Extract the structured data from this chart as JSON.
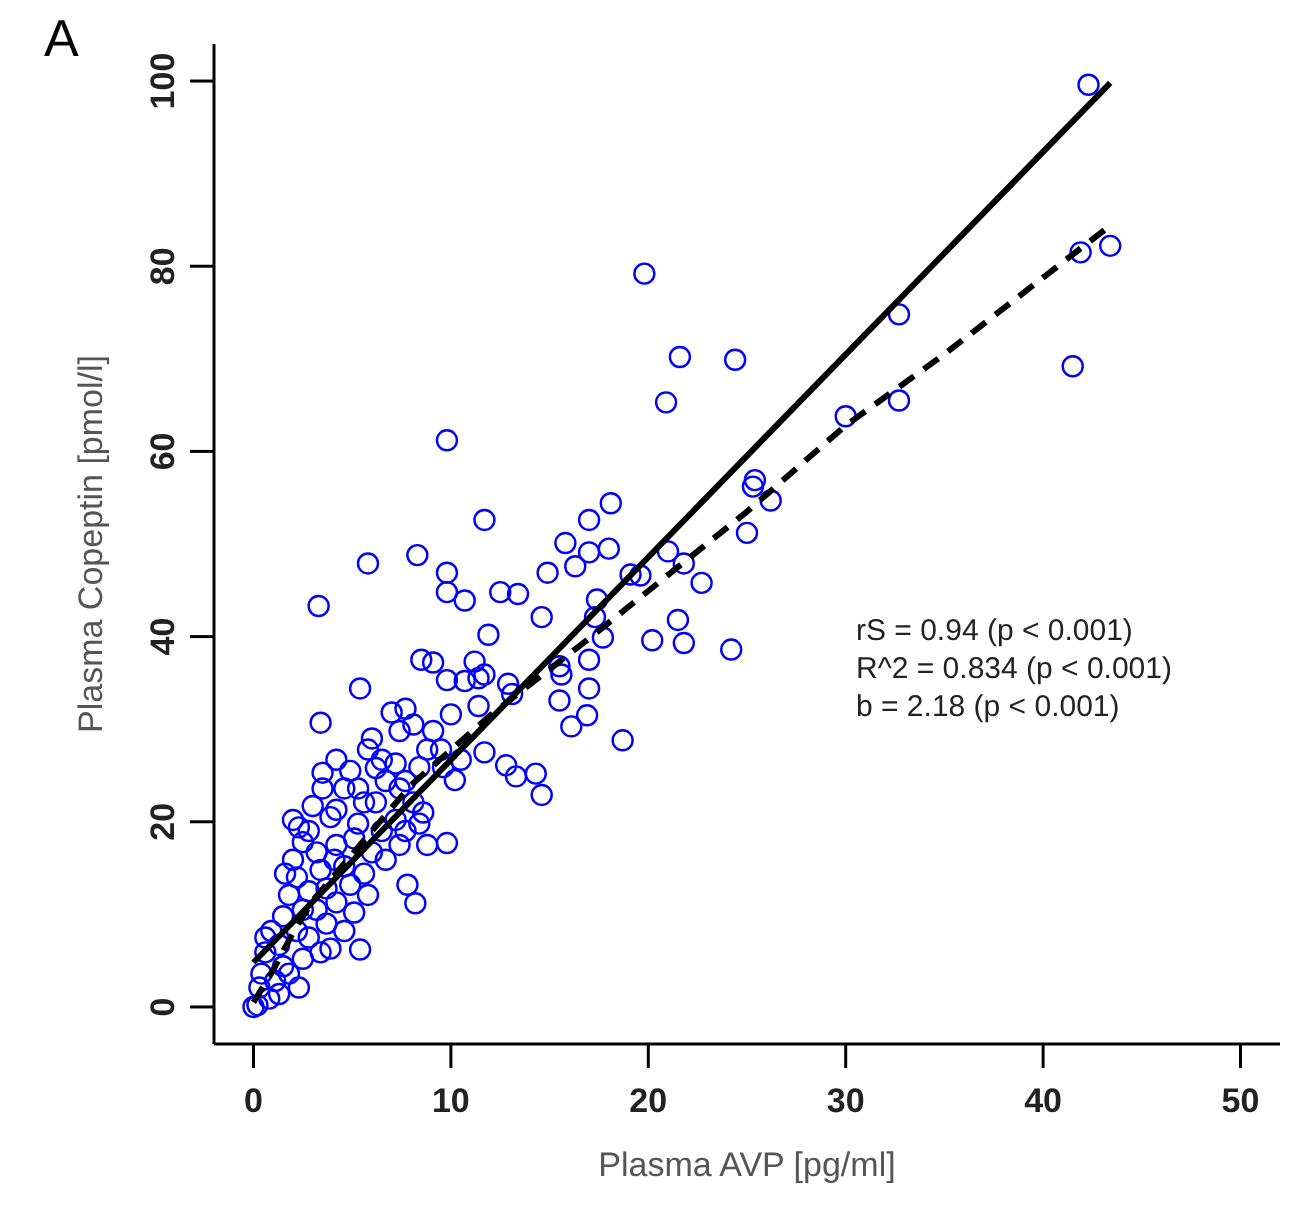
{
  "chart_data": {
    "type": "scatter",
    "title": "A",
    "xlabel": "Plasma AVP [pg/ml]",
    "ylabel": "Plasma Copeptin [pmol/l]",
    "xlim": [
      -2,
      52
    ],
    "ylim": [
      -4,
      104
    ],
    "xticks": [
      0,
      10,
      20,
      30,
      40,
      50
    ],
    "yticks": [
      0,
      20,
      40,
      60,
      80,
      100
    ],
    "grid": false,
    "annotations": [
      "rS = 0.94 (p < 0.001)",
      "R^2 = 0.834 (p < 0.001)",
      "b = 2.18 (p < 0.001)"
    ],
    "series": [
      {
        "color": "#0000ff",
        "marker": "circle",
        "x": [
          42.3,
          41.9,
          43.4,
          41.5,
          32.7,
          32.7,
          30.0,
          19.8,
          21.6,
          24.4,
          20.9,
          9.8,
          25.4,
          25.3,
          26.2,
          25.0,
          18.1,
          17.0,
          15.8,
          17.0,
          18.0,
          16.3,
          21.0,
          21.8,
          22.7,
          19.1,
          19.6,
          17.4,
          17.3,
          21.5,
          20.2,
          21.8,
          24.2,
          17.7,
          17.0,
          17.0,
          15.5,
          15.6,
          15.5,
          16.9,
          16.1,
          18.7,
          11.7,
          8.3,
          5.8,
          9.8,
          9.8,
          10.7,
          12.5,
          13.4,
          14.9,
          14.6,
          11.9,
          3.3,
          8.5,
          9.1,
          11.2,
          11.7,
          11.4,
          9.8,
          10.7,
          12.9,
          13.1,
          5.4,
          3.4,
          11.4,
          10.0,
          7.0,
          7.7,
          11.7,
          12.8,
          13.3,
          14.3,
          14.6,
          10.2,
          9.8,
          7.8,
          8.2,
          5.4,
          2.0,
          3.5,
          0.0,
          4.9,
          5.8,
          7.4,
          8.1,
          8.8,
          9.1,
          10.5,
          6.2,
          6.7,
          7.4,
          8.1,
          8.4,
          8.6,
          7.2,
          6.5,
          5.6,
          4.6,
          4.2,
          3.9,
          2.8,
          2.5,
          3.2,
          4.2,
          5.1,
          6.0,
          6.7,
          7.4,
          5.6,
          4.9,
          5.8,
          5.1,
          4.2,
          3.7,
          3.9,
          2.8,
          2.2,
          1.8,
          2.0,
          1.5,
          0.9,
          0.6,
          0.4,
          1.1,
          1.8,
          2.3,
          0.8,
          1.5,
          2.5,
          3.2,
          3.7,
          2.8,
          4.6,
          3.4,
          4.1,
          5.3,
          6.2,
          5.3,
          7.2,
          7.7,
          8.4,
          9.5,
          9.6,
          0.3,
          0.6,
          1.3,
          2.2,
          3.4,
          2.5,
          1.6,
          2.3,
          3.0,
          3.5,
          4.2,
          6.0,
          6.5,
          8.8,
          7.7,
          4.6,
          1.3,
          0.2
        ],
        "values": [
          99.6,
          81.5,
          82.2,
          69.2,
          74.8,
          65.5,
          63.8,
          79.2,
          70.2,
          69.9,
          65.3,
          61.2,
          56.9,
          56.2,
          54.7,
          51.2,
          54.4,
          52.6,
          50.1,
          49.1,
          49.5,
          47.6,
          49.2,
          47.9,
          45.8,
          46.7,
          46.6,
          44.0,
          42.1,
          41.8,
          39.6,
          39.3,
          38.6,
          39.9,
          37.5,
          34.4,
          36.8,
          35.9,
          33.1,
          31.5,
          30.3,
          28.8,
          52.6,
          48.8,
          47.9,
          46.9,
          44.8,
          43.9,
          44.8,
          44.6,
          46.9,
          42.1,
          40.2,
          43.3,
          37.5,
          37.2,
          37.3,
          35.9,
          35.5,
          35.3,
          35.2,
          34.9,
          33.8,
          34.4,
          30.7,
          32.5,
          31.6,
          31.8,
          32.2,
          27.5,
          26.1,
          24.9,
          25.2,
          22.9,
          24.5,
          17.7,
          13.2,
          11.2,
          6.2,
          20.2,
          25.3,
          0.0,
          25.5,
          27.8,
          29.8,
          30.5,
          27.8,
          29.8,
          26.7,
          25.8,
          24.4,
          23.6,
          22.1,
          19.8,
          21.0,
          20.2,
          19.0,
          22.1,
          23.6,
          21.3,
          20.5,
          19.0,
          17.8,
          16.7,
          17.5,
          18.2,
          16.7,
          15.9,
          17.5,
          14.4,
          13.2,
          12.1,
          10.2,
          11.3,
          9.0,
          6.3,
          7.5,
          14.0,
          12.1,
          15.9,
          9.8,
          8.2,
          5.9,
          3.6,
          2.8,
          3.6,
          2.1,
          0.9,
          4.4,
          5.2,
          10.5,
          12.8,
          12.5,
          15.2,
          14.8,
          15.9,
          19.8,
          22.1,
          23.6,
          26.3,
          24.4,
          25.9,
          27.8,
          25.9,
          2.1,
          7.5,
          6.7,
          8.2,
          5.9,
          10.5,
          14.4,
          19.4,
          21.7,
          23.6,
          26.7,
          29.0,
          26.7,
          17.5,
          19.0,
          8.2,
          1.4,
          0.2
        ]
      },
      {
        "type": "line",
        "color": "#000000",
        "line_style": "solid",
        "x": [
          0,
          43.4
        ],
        "values": [
          4.8,
          99.8
        ]
      },
      {
        "type": "line",
        "color": "#000000",
        "line_style": "dashed",
        "x": [
          0,
          1,
          2,
          3,
          5,
          8,
          12,
          17,
          25,
          30,
          35,
          43.4
        ],
        "values": [
          0.5,
          4,
          8,
          11.5,
          16.5,
          24,
          31.5,
          39.8,
          53.5,
          62.8,
          70.5,
          84.4
        ]
      }
    ]
  }
}
